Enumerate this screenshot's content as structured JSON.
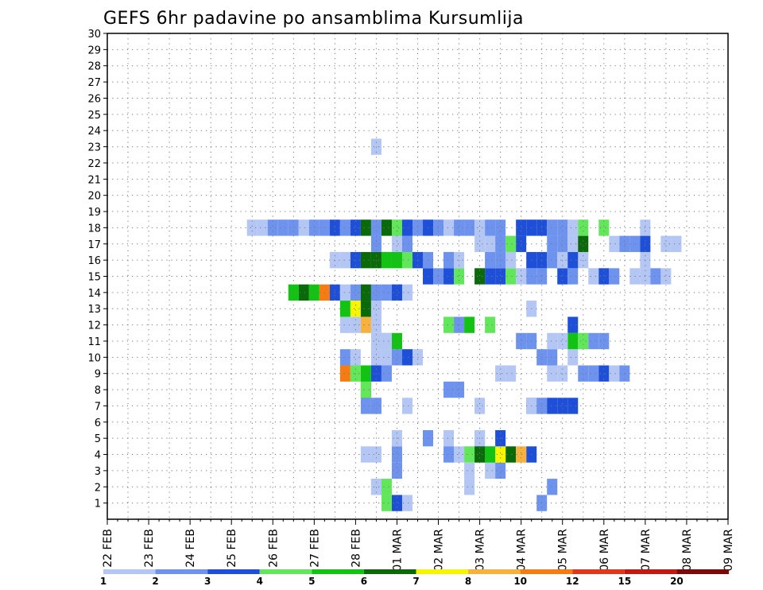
{
  "chart_data": {
    "type": "heatmap",
    "title": "GEFS 6hr padavine po ansamblima Kursumlija",
    "x_tick_labels": [
      "22 FEB",
      "23 FEB",
      "24 FEB",
      "25 FEB",
      "26 FEB",
      "27 FEB",
      "28 FEB",
      "01 MAR",
      "02 MAR",
      "03 MAR",
      "04 MAR",
      "05 MAR",
      "06 MAR",
      "07 MAR",
      "08 MAR",
      "09 MAR"
    ],
    "y_ticks": [
      1,
      2,
      3,
      4,
      5,
      6,
      7,
      8,
      9,
      10,
      11,
      12,
      13,
      14,
      15,
      16,
      17,
      18,
      19,
      20,
      21,
      22,
      23,
      24,
      25,
      26,
      27,
      28,
      29,
      30
    ],
    "ylim": [
      0,
      30
    ],
    "x_unit": "6-hour step from 22 FEB 00Z",
    "xlim": [
      0,
      60
    ],
    "grid": true,
    "legend": {
      "placement": "bottom",
      "labels": [
        "1",
        "2",
        "3",
        "4",
        "5",
        "6",
        "7",
        "8",
        "10",
        "12",
        "15",
        "20"
      ],
      "colors": [
        "#b4c6f4",
        "#6e93ee",
        "#1e4fd8",
        "#62e65a",
        "#12c412",
        "#0a6a0a",
        "#f6f600",
        "#f7b13c",
        "#f47c12",
        "#e0381a",
        "#c21a12",
        "#7a0a0a"
      ]
    },
    "cells": [
      [
        29,
        1,
        0
      ],
      [
        28,
        1,
        2
      ],
      [
        27,
        1,
        3
      ],
      [
        27,
        2,
        3
      ],
      [
        26,
        2,
        1
      ],
      [
        26,
        2,
        0
      ],
      [
        28,
        4,
        1
      ],
      [
        28,
        5,
        0
      ],
      [
        27,
        10,
        0
      ],
      [
        26,
        12,
        0
      ],
      [
        26,
        13,
        0
      ],
      [
        28,
        17,
        0
      ],
      [
        26,
        23,
        0
      ],
      [
        30,
        40,
        0
      ],
      [
        31,
        40,
        1
      ],
      [
        33,
        40,
        3
      ],
      [
        34,
        40,
        0
      ],
      [
        39,
        41,
        0
      ],
      [
        25,
        4,
        0
      ],
      [
        26,
        4,
        0
      ],
      [
        28,
        3,
        1
      ],
      [
        26,
        10,
        0
      ],
      [
        28,
        10,
        1
      ],
      [
        26,
        11,
        0
      ],
      [
        27,
        11,
        3
      ],
      [
        28,
        11,
        4
      ],
      [
        28,
        14,
        0
      ],
      [
        29,
        14,
        0
      ],
      [
        37,
        4,
        1
      ],
      [
        36,
        5,
        1
      ],
      [
        37,
        3,
        0
      ],
      [
        38,
        3,
        1
      ],
      [
        33,
        5,
        0
      ],
      [
        36,
        4,
        0
      ],
      [
        35,
        4,
        3
      ],
      [
        36,
        5,
        0
      ],
      [
        42,
        1,
        1
      ],
      [
        43,
        2,
        1
      ],
      [
        35,
        2,
        0
      ],
      [
        35,
        3,
        0
      ],
      [
        34,
        4,
        0
      ],
      [
        31,
        5,
        1
      ],
      [
        33,
        4,
        1
      ],
      [
        39,
        4,
        5
      ],
      [
        38,
        4,
        6
      ],
      [
        41,
        4,
        2
      ],
      [
        40,
        4,
        7
      ],
      [
        37,
        4,
        4
      ],
      [
        36,
        4,
        5
      ],
      [
        38,
        5,
        2
      ],
      [
        26,
        7,
        1
      ],
      [
        41,
        7,
        1
      ],
      [
        41,
        7,
        0
      ],
      [
        25,
        7,
        1
      ],
      [
        36,
        7,
        0
      ],
      [
        29,
        7,
        0
      ],
      [
        42,
        7,
        1
      ],
      [
        43,
        7,
        2
      ],
      [
        44,
        7,
        2
      ],
      [
        45,
        7,
        2
      ],
      [
        33,
        8,
        1
      ],
      [
        34,
        8,
        1
      ],
      [
        25,
        8,
        5
      ],
      [
        25,
        8,
        3
      ],
      [
        26,
        9,
        2
      ],
      [
        27,
        9,
        1
      ],
      [
        25,
        9,
        4
      ],
      [
        23,
        9,
        8
      ],
      [
        24,
        9,
        6
      ],
      [
        24,
        9,
        3
      ],
      [
        38,
        9,
        0
      ],
      [
        39,
        9,
        0
      ],
      [
        43,
        9,
        0
      ],
      [
        44,
        9,
        0
      ],
      [
        46,
        9,
        1
      ],
      [
        47,
        9,
        1
      ],
      [
        48,
        9,
        2
      ],
      [
        49,
        9,
        0
      ],
      [
        50,
        9,
        1
      ],
      [
        45,
        10,
        0
      ],
      [
        29,
        10,
        2
      ],
      [
        30,
        10,
        0
      ],
      [
        42,
        10,
        1
      ],
      [
        43,
        10,
        1
      ],
      [
        23,
        10,
        1
      ],
      [
        24,
        10,
        0
      ],
      [
        27,
        11,
        0
      ],
      [
        43,
        11,
        0
      ],
      [
        45,
        11,
        4
      ],
      [
        46,
        11,
        3
      ],
      [
        47,
        11,
        1
      ],
      [
        48,
        11,
        1
      ],
      [
        41,
        11,
        1
      ],
      [
        40,
        11,
        1
      ],
      [
        44,
        11,
        0
      ],
      [
        45,
        12,
        2
      ],
      [
        33,
        12,
        3
      ],
      [
        34,
        12,
        1
      ],
      [
        35,
        12,
        4
      ],
      [
        37,
        12,
        3
      ],
      [
        23,
        12,
        0
      ],
      [
        24,
        12,
        0
      ],
      [
        25,
        12,
        7
      ],
      [
        41,
        13,
        0
      ],
      [
        23,
        13,
        4
      ],
      [
        24,
        13,
        6
      ],
      [
        25,
        13,
        5
      ],
      [
        26,
        13,
        0
      ],
      [
        18,
        14,
        4
      ],
      [
        19,
        14,
        5
      ],
      [
        20,
        14,
        4
      ],
      [
        21,
        14,
        8
      ],
      [
        22,
        14,
        2
      ],
      [
        23,
        14,
        0
      ],
      [
        24,
        14,
        1
      ],
      [
        25,
        14,
        5
      ],
      [
        26,
        14,
        1
      ],
      [
        27,
        14,
        1
      ],
      [
        28,
        14,
        2
      ],
      [
        31,
        15,
        2
      ],
      [
        32,
        15,
        1
      ],
      [
        33,
        15,
        2
      ],
      [
        34,
        15,
        3
      ],
      [
        36,
        15,
        5
      ],
      [
        37,
        15,
        2
      ],
      [
        38,
        15,
        2
      ],
      [
        39,
        15,
        3
      ],
      [
        40,
        15,
        0
      ],
      [
        41,
        15,
        1
      ],
      [
        42,
        15,
        1
      ],
      [
        44,
        15,
        2
      ],
      [
        45,
        15,
        1
      ],
      [
        47,
        15,
        0
      ],
      [
        48,
        15,
        2
      ],
      [
        49,
        15,
        1
      ],
      [
        51,
        15,
        0
      ],
      [
        52,
        15,
        0
      ],
      [
        53,
        15,
        1
      ],
      [
        54,
        15,
        0
      ],
      [
        52,
        16,
        0
      ],
      [
        46,
        16,
        0
      ],
      [
        39,
        16,
        0
      ],
      [
        41,
        16,
        2
      ],
      [
        42,
        16,
        2
      ],
      [
        43,
        16,
        1
      ],
      [
        44,
        16,
        0
      ],
      [
        45,
        16,
        2
      ],
      [
        29,
        16,
        0
      ],
      [
        30,
        16,
        0
      ],
      [
        33,
        16,
        1
      ],
      [
        34,
        16,
        0
      ],
      [
        37,
        16,
        1
      ],
      [
        38,
        16,
        1
      ],
      [
        22,
        16,
        0
      ],
      [
        23,
        16,
        0
      ],
      [
        24,
        16,
        2
      ],
      [
        25,
        16,
        5
      ],
      [
        26,
        16,
        5
      ],
      [
        27,
        16,
        4
      ],
      [
        28,
        16,
        4
      ],
      [
        29,
        16,
        3
      ],
      [
        30,
        16,
        2
      ],
      [
        31,
        16,
        1
      ],
      [
        33,
        16,
        1
      ],
      [
        36,
        17,
        0
      ],
      [
        37,
        17,
        0
      ],
      [
        38,
        17,
        1
      ],
      [
        39,
        17,
        3
      ],
      [
        40,
        17,
        2
      ],
      [
        43,
        17,
        1
      ],
      [
        44,
        17,
        1
      ],
      [
        45,
        17,
        0
      ],
      [
        46,
        17,
        5
      ],
      [
        49,
        17,
        0
      ],
      [
        50,
        17,
        1
      ],
      [
        51,
        17,
        1
      ],
      [
        52,
        17,
        2
      ],
      [
        54,
        17,
        0
      ],
      [
        55,
        17,
        0
      ],
      [
        29,
        17,
        1
      ],
      [
        26,
        17,
        1
      ],
      [
        28,
        17,
        0
      ],
      [
        14,
        18,
        0
      ],
      [
        15,
        18,
        0
      ],
      [
        16,
        18,
        1
      ],
      [
        17,
        18,
        1
      ],
      [
        18,
        18,
        1
      ],
      [
        19,
        18,
        0
      ],
      [
        20,
        18,
        1
      ],
      [
        21,
        18,
        1
      ],
      [
        22,
        18,
        2
      ],
      [
        23,
        18,
        1
      ],
      [
        24,
        18,
        2
      ],
      [
        25,
        18,
        5
      ],
      [
        26,
        18,
        1
      ],
      [
        27,
        18,
        5
      ],
      [
        28,
        18,
        3
      ],
      [
        29,
        18,
        2
      ],
      [
        30,
        18,
        1
      ],
      [
        31,
        18,
        2
      ],
      [
        32,
        18,
        1
      ],
      [
        33,
        18,
        0
      ],
      [
        34,
        18,
        1
      ],
      [
        35,
        18,
        1
      ],
      [
        36,
        18,
        0
      ],
      [
        37,
        18,
        1
      ],
      [
        38,
        18,
        1
      ],
      [
        40,
        18,
        2
      ],
      [
        41,
        18,
        2
      ],
      [
        42,
        18,
        2
      ],
      [
        43,
        18,
        1
      ],
      [
        44,
        18,
        1
      ],
      [
        45,
        18,
        0
      ],
      [
        46,
        18,
        3
      ],
      [
        48,
        18,
        3
      ],
      [
        52,
        18,
        0
      ]
    ]
  }
}
